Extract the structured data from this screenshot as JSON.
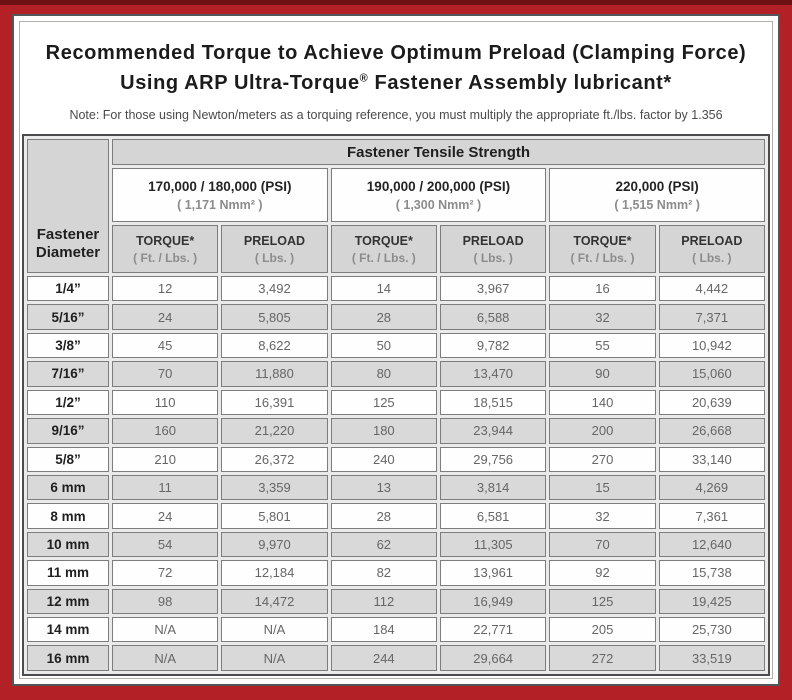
{
  "title": {
    "line1": "Recommended Torque to Achieve Optimum Preload (Clamping Force)",
    "line2_pre": "Using ARP Ultra-Torque",
    "line2_reg": "®",
    "line2_post": " Fastener Assembly lubricant*"
  },
  "note": "Note: For those using Newton/meters as a torquing reference, you must multiply the appropriate ft./lbs. factor by 1.356",
  "colors": {
    "frame_red": "#b32025",
    "frame_dark_maroon": "#6e1114",
    "header_gray": "#d5d5d5",
    "stripe_gray": "#d9d9d9"
  },
  "table": {
    "group_header": "Fastener Tensile Strength",
    "corner_line1": "Fastener",
    "corner_line2": "Diameter",
    "psi_groups": [
      {
        "psi": "170,000 / 180,000 (PSI)",
        "nmm": "( 1,171 Nmm² )"
      },
      {
        "psi": "190,000 / 200,000 (PSI)",
        "nmm": "( 1,300 Nmm² )"
      },
      {
        "psi": "220,000 (PSI)",
        "nmm": "( 1,515 Nmm² )"
      }
    ],
    "sub": {
      "torque_label": "TORQUE*",
      "torque_unit": "( Ft. / Lbs. )",
      "preload_label": "PRELOAD",
      "preload_unit": "( Lbs. )"
    },
    "rows": [
      {
        "diameter": "1/4”",
        "values": [
          "12",
          "3,492",
          "14",
          "3,967",
          "16",
          "4,442"
        ]
      },
      {
        "diameter": "5/16”",
        "values": [
          "24",
          "5,805",
          "28",
          "6,588",
          "32",
          "7,371"
        ]
      },
      {
        "diameter": "3/8”",
        "values": [
          "45",
          "8,622",
          "50",
          "9,782",
          "55",
          "10,942"
        ]
      },
      {
        "diameter": "7/16”",
        "values": [
          "70",
          "11,880",
          "80",
          "13,470",
          "90",
          "15,060"
        ]
      },
      {
        "diameter": "1/2”",
        "values": [
          "110",
          "16,391",
          "125",
          "18,515",
          "140",
          "20,639"
        ]
      },
      {
        "diameter": "9/16”",
        "values": [
          "160",
          "21,220",
          "180",
          "23,944",
          "200",
          "26,668"
        ]
      },
      {
        "diameter": "5/8”",
        "values": [
          "210",
          "26,372",
          "240",
          "29,756",
          "270",
          "33,140"
        ]
      },
      {
        "diameter": "6 mm",
        "values": [
          "11",
          "3,359",
          "13",
          "3,814",
          "15",
          "4,269"
        ]
      },
      {
        "diameter": "8 mm",
        "values": [
          "24",
          "5,801",
          "28",
          "6,581",
          "32",
          "7,361"
        ]
      },
      {
        "diameter": "10 mm",
        "values": [
          "54",
          "9,970",
          "62",
          "11,305",
          "70",
          "12,640"
        ]
      },
      {
        "diameter": "11 mm",
        "values": [
          "72",
          "12,184",
          "82",
          "13,961",
          "92",
          "15,738"
        ]
      },
      {
        "diameter": "12 mm",
        "values": [
          "98",
          "14,472",
          "112",
          "16,949",
          "125",
          "19,425"
        ]
      },
      {
        "diameter": "14 mm",
        "values": [
          "N/A",
          "N/A",
          "184",
          "22,771",
          "205",
          "25,730"
        ]
      },
      {
        "diameter": "16 mm",
        "values": [
          "N/A",
          "N/A",
          "244",
          "29,664",
          "272",
          "33,519"
        ]
      }
    ]
  }
}
